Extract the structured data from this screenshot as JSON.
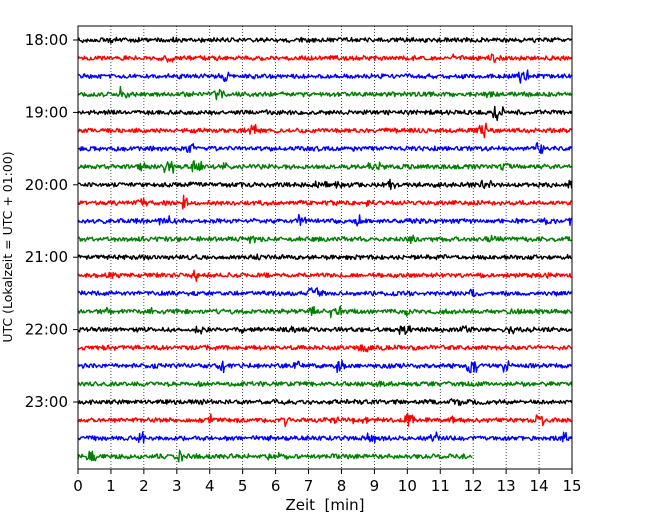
{
  "chart_data": {
    "type": "line",
    "title": "",
    "xlabel": "Zeit  [min]",
    "ylabel": "UTC (Lokalzeit = UTC + 01:00)",
    "xlim": [
      0,
      15
    ],
    "x_ticks": [
      "0",
      "1",
      "2",
      "3",
      "4",
      "5",
      "6",
      "7",
      "8",
      "9",
      "10",
      "11",
      "12",
      "13",
      "14",
      "15"
    ],
    "y_tick_labels": [
      "18:00",
      "19:00",
      "20:00",
      "21:00",
      "22:00",
      "23:00"
    ],
    "grid": "vertical-dotted",
    "trace_interval_minutes": 15,
    "colors": [
      "#000000",
      "#ff0000",
      "#0000ff",
      "#008000"
    ],
    "series": [
      {
        "start": "18:00",
        "end_min": 15,
        "color": "#000000"
      },
      {
        "start": "18:15",
        "end_min": 15,
        "color": "#ff0000"
      },
      {
        "start": "18:30",
        "end_min": 15,
        "color": "#0000ff"
      },
      {
        "start": "18:45",
        "end_min": 15,
        "color": "#008000"
      },
      {
        "start": "19:00",
        "end_min": 15,
        "color": "#000000"
      },
      {
        "start": "19:15",
        "end_min": 15,
        "color": "#ff0000"
      },
      {
        "start": "19:30",
        "end_min": 15,
        "color": "#0000ff"
      },
      {
        "start": "19:45",
        "end_min": 15,
        "color": "#008000"
      },
      {
        "start": "20:00",
        "end_min": 15,
        "color": "#000000"
      },
      {
        "start": "20:15",
        "end_min": 15,
        "color": "#ff0000"
      },
      {
        "start": "20:30",
        "end_min": 15,
        "color": "#0000ff"
      },
      {
        "start": "20:45",
        "end_min": 15,
        "color": "#008000"
      },
      {
        "start": "21:00",
        "end_min": 15,
        "color": "#000000"
      },
      {
        "start": "21:15",
        "end_min": 15,
        "color": "#ff0000"
      },
      {
        "start": "21:30",
        "end_min": 15,
        "color": "#0000ff"
      },
      {
        "start": "21:45",
        "end_min": 15,
        "color": "#008000"
      },
      {
        "start": "22:00",
        "end_min": 15,
        "color": "#000000"
      },
      {
        "start": "22:15",
        "end_min": 15,
        "color": "#ff0000"
      },
      {
        "start": "22:30",
        "end_min": 15,
        "color": "#0000ff"
      },
      {
        "start": "22:45",
        "end_min": 15,
        "color": "#008000"
      },
      {
        "start": "23:00",
        "end_min": 15,
        "color": "#000000"
      },
      {
        "start": "23:15",
        "end_min": 15,
        "color": "#ff0000"
      },
      {
        "start": "23:30",
        "end_min": 15,
        "color": "#0000ff"
      },
      {
        "start": "23:45",
        "end_min": 12,
        "color": "#008000"
      }
    ]
  }
}
